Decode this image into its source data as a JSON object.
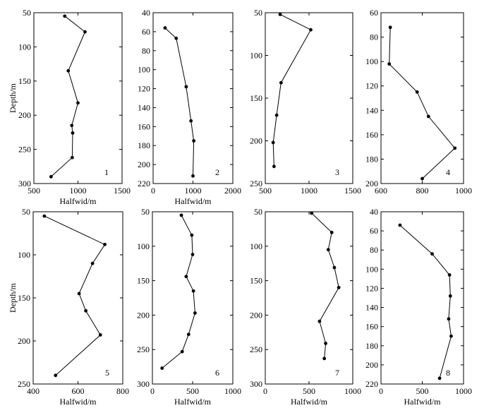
{
  "chart_data": [
    {
      "type": "line",
      "panel_label": "1",
      "xlabel": "Halfwid/m",
      "ylabel": "Depth/m",
      "xlim": [
        500,
        1500
      ],
      "ylim": [
        50,
        300
      ],
      "y_reversed": true,
      "xticks": [
        "500",
        "1000",
        "1500"
      ],
      "yticks": [
        "50",
        "100",
        "150",
        "200",
        "250",
        "300"
      ],
      "points": [
        {
          "x": 850,
          "y": 55
        },
        {
          "x": 1080,
          "y": 78
        },
        {
          "x": 890,
          "y": 135
        },
        {
          "x": 1000,
          "y": 182
        },
        {
          "x": 930,
          "y": 215
        },
        {
          "x": 940,
          "y": 226
        },
        {
          "x": 935,
          "y": 262
        },
        {
          "x": 695,
          "y": 290
        }
      ]
    },
    {
      "type": "line",
      "panel_label": "2",
      "xlabel": "Halfwid/m",
      "ylabel": "",
      "xlim": [
        0,
        2000
      ],
      "ylim": [
        40,
        220
      ],
      "y_reversed": true,
      "xticks": [
        "0",
        "1000",
        "2000"
      ],
      "yticks": [
        "40",
        "60",
        "80",
        "100",
        "120",
        "140",
        "160",
        "180",
        "200",
        "220"
      ],
      "points": [
        {
          "x": 300,
          "y": 56
        },
        {
          "x": 580,
          "y": 67
        },
        {
          "x": 830,
          "y": 118
        },
        {
          "x": 950,
          "y": 154
        },
        {
          "x": 1020,
          "y": 175
        },
        {
          "x": 1000,
          "y": 212
        }
      ]
    },
    {
      "type": "line",
      "panel_label": "3",
      "xlabel": "",
      "ylabel": "",
      "xlim": [
        500,
        1500
      ],
      "ylim": [
        50,
        250
      ],
      "y_reversed": true,
      "xticks": [
        "500",
        "1000",
        "1500"
      ],
      "yticks": [
        "50",
        "100",
        "150",
        "200",
        "250"
      ],
      "points": [
        {
          "x": 670,
          "y": 52
        },
        {
          "x": 1020,
          "y": 70
        },
        {
          "x": 680,
          "y": 132
        },
        {
          "x": 630,
          "y": 170
        },
        {
          "x": 590,
          "y": 202
        },
        {
          "x": 600,
          "y": 230
        }
      ]
    },
    {
      "type": "line",
      "panel_label": "4",
      "xlabel": "",
      "ylabel": "",
      "xlim": [
        600,
        1000
      ],
      "ylim": [
        60,
        200
      ],
      "y_reversed": true,
      "xticks": [
        "600",
        "800",
        "1000"
      ],
      "yticks": [
        "60",
        "80",
        "100",
        "120",
        "140",
        "160",
        "180",
        "200"
      ],
      "points": [
        {
          "x": 645,
          "y": 72
        },
        {
          "x": 640,
          "y": 102
        },
        {
          "x": 775,
          "y": 125
        },
        {
          "x": 830,
          "y": 145
        },
        {
          "x": 958,
          "y": 171
        },
        {
          "x": 800,
          "y": 196
        }
      ]
    },
    {
      "type": "line",
      "panel_label": "5",
      "xlabel": "Halfwid/m",
      "ylabel": "Depth/m",
      "xlim": [
        400,
        800
      ],
      "ylim": [
        50,
        250
      ],
      "y_reversed": true,
      "xticks": [
        "400",
        "600",
        "800"
      ],
      "yticks": [
        "50",
        "100",
        "150",
        "200",
        "250"
      ],
      "points": [
        {
          "x": 450,
          "y": 55
        },
        {
          "x": 720,
          "y": 88
        },
        {
          "x": 665,
          "y": 110
        },
        {
          "x": 605,
          "y": 145
        },
        {
          "x": 635,
          "y": 165
        },
        {
          "x": 700,
          "y": 193
        },
        {
          "x": 500,
          "y": 240
        }
      ]
    },
    {
      "type": "line",
      "panel_label": "6",
      "xlabel": "Halfwid/m",
      "ylabel": "",
      "xlim": [
        0,
        1000
      ],
      "ylim": [
        50,
        300
      ],
      "y_reversed": true,
      "xticks": [
        "0",
        "500",
        "1000"
      ],
      "yticks": [
        "50",
        "100",
        "150",
        "200",
        "250",
        "300"
      ],
      "points": [
        {
          "x": 360,
          "y": 55
        },
        {
          "x": 490,
          "y": 84
        },
        {
          "x": 500,
          "y": 112
        },
        {
          "x": 420,
          "y": 144
        },
        {
          "x": 510,
          "y": 165
        },
        {
          "x": 530,
          "y": 197
        },
        {
          "x": 450,
          "y": 228
        },
        {
          "x": 370,
          "y": 253
        },
        {
          "x": 120,
          "y": 277
        }
      ]
    },
    {
      "type": "line",
      "panel_label": "7",
      "xlabel": "Halfwid/m",
      "ylabel": "",
      "xlim": [
        0,
        1000
      ],
      "ylim": [
        50,
        300
      ],
      "y_reversed": true,
      "xticks": [
        "0",
        "500",
        "1000"
      ],
      "yticks": [
        "50",
        "100",
        "150",
        "200",
        "250",
        "300"
      ],
      "points": [
        {
          "x": 530,
          "y": 52
        },
        {
          "x": 760,
          "y": 80
        },
        {
          "x": 720,
          "y": 105
        },
        {
          "x": 790,
          "y": 131
        },
        {
          "x": 840,
          "y": 160
        },
        {
          "x": 620,
          "y": 209
        },
        {
          "x": 690,
          "y": 241
        },
        {
          "x": 675,
          "y": 263
        }
      ]
    },
    {
      "type": "line",
      "panel_label": "8",
      "xlabel": "Halfwid/m",
      "ylabel": "",
      "xlim": [
        0,
        1000
      ],
      "ylim": [
        40,
        220
      ],
      "y_reversed": true,
      "xticks": [
        "0",
        "500",
        "1000"
      ],
      "yticks": [
        "40",
        "60",
        "80",
        "100",
        "120",
        "140",
        "160",
        "180",
        "200",
        "220"
      ],
      "points": [
        {
          "x": 230,
          "y": 54
        },
        {
          "x": 620,
          "y": 84
        },
        {
          "x": 830,
          "y": 106
        },
        {
          "x": 840,
          "y": 128
        },
        {
          "x": 820,
          "y": 152
        },
        {
          "x": 850,
          "y": 170
        },
        {
          "x": 710,
          "y": 214
        }
      ]
    }
  ]
}
